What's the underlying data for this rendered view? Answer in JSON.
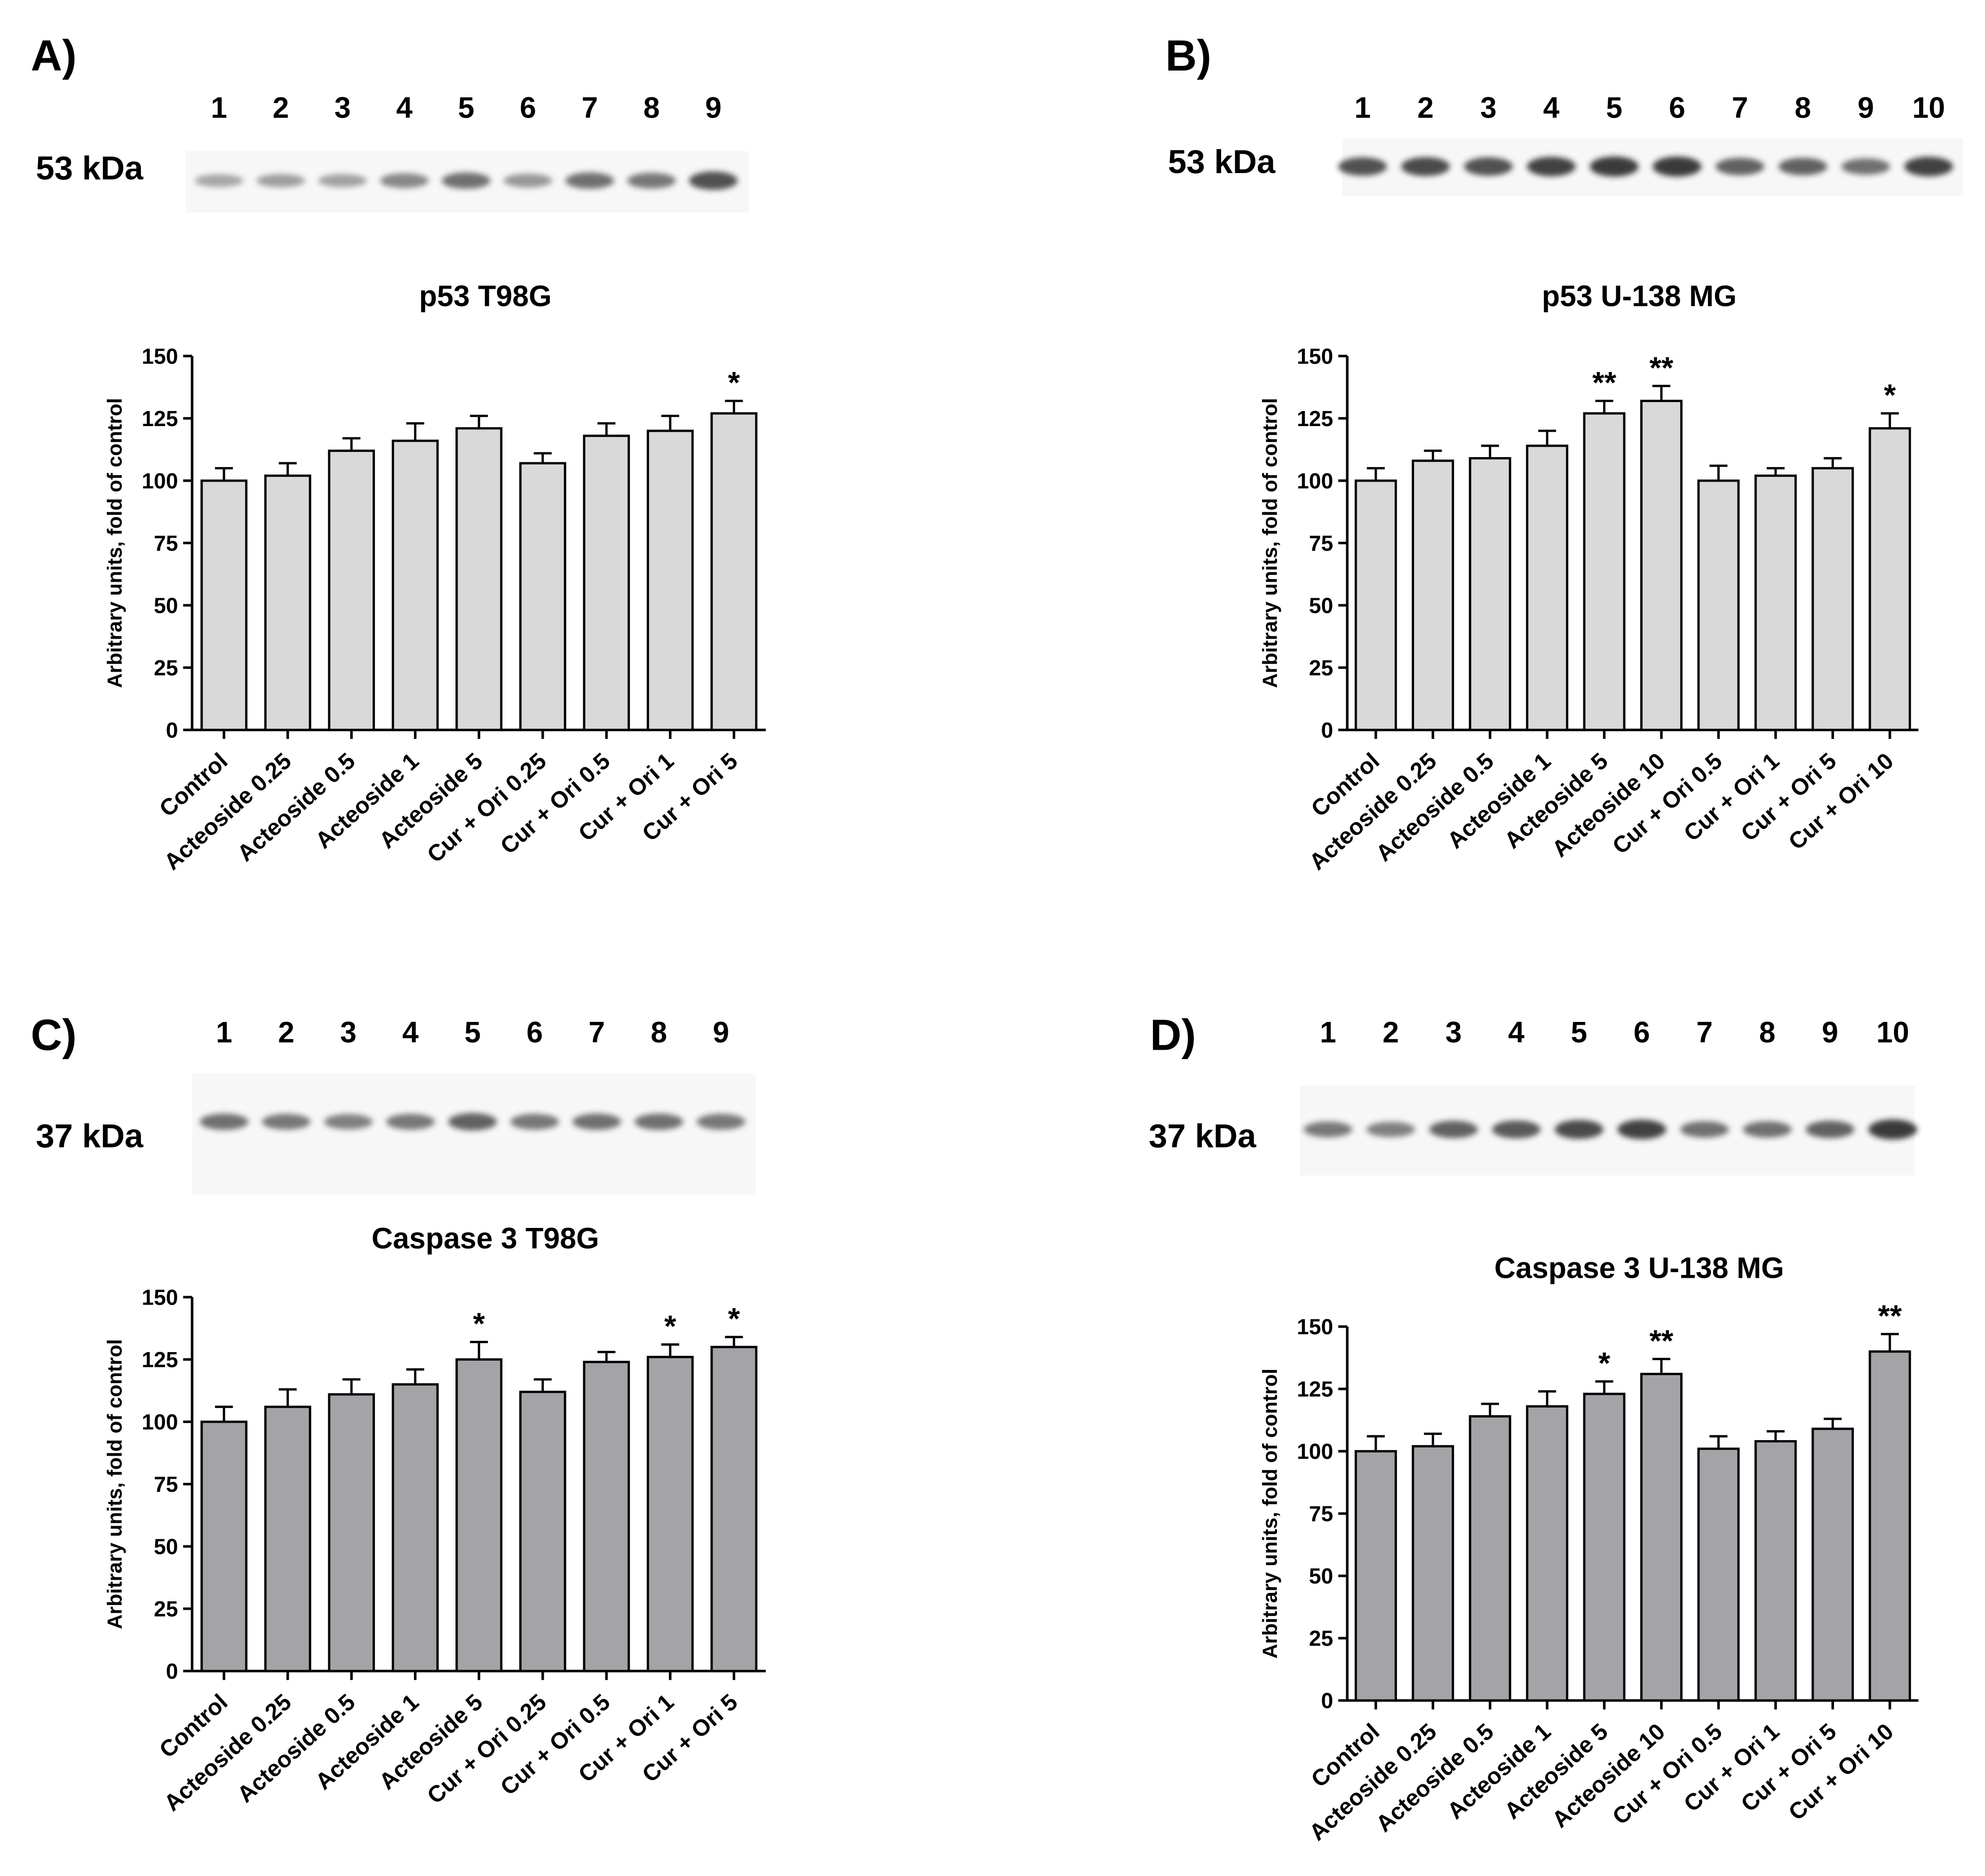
{
  "figure": {
    "panels": [
      {
        "label": "A)",
        "blot": {
          "mw_label": "53 kDa",
          "lanes": [
            "1",
            "2",
            "3",
            "4",
            "5",
            "6",
            "7",
            "8",
            "9"
          ],
          "band_intensity": [
            0.25,
            0.3,
            0.28,
            0.45,
            0.6,
            0.35,
            0.6,
            0.55,
            0.8
          ]
        }
      },
      {
        "label": "B)",
        "blot": {
          "mw_label": "53 kDa",
          "lanes": [
            "1",
            "2",
            "3",
            "4",
            "5",
            "6",
            "7",
            "8",
            "9",
            "10"
          ],
          "band_intensity": [
            0.8,
            0.85,
            0.8,
            0.9,
            0.95,
            0.95,
            0.7,
            0.7,
            0.6,
            0.9
          ]
        }
      },
      {
        "label": "C)",
        "blot": {
          "mw_label": "37 kDa",
          "lanes": [
            "1",
            "2",
            "3",
            "4",
            "5",
            "6",
            "7",
            "8",
            "9"
          ],
          "band_intensity": [
            0.6,
            0.55,
            0.5,
            0.55,
            0.7,
            0.55,
            0.6,
            0.6,
            0.55
          ]
        }
      },
      {
        "label": "D)",
        "blot": {
          "mw_label": "37 kDa",
          "lanes": [
            "1",
            "2",
            "3",
            "4",
            "5",
            "6",
            "7",
            "8",
            "9",
            "10"
          ],
          "band_intensity": [
            0.55,
            0.5,
            0.7,
            0.75,
            0.85,
            0.9,
            0.6,
            0.6,
            0.7,
            0.95
          ]
        }
      }
    ]
  },
  "chart_data": [
    {
      "type": "bar",
      "title": "p53 T98G",
      "ylabel": "Arbitrary units, fold of control",
      "xlabel": "",
      "ylim": [
        0,
        150
      ],
      "yticks": [
        0,
        25,
        50,
        75,
        100,
        125,
        150
      ],
      "bar_color": "#d9d9d9",
      "categories": [
        "Control",
        "Acteoside 0.25",
        "Acteoside 0.5",
        "Acteoside 1",
        "Acteoside 5",
        "Cur + Ori 0.25",
        "Cur + Ori 0.5",
        "Cur + Ori 1",
        "Cur + Ori 5"
      ],
      "values": [
        100,
        102,
        112,
        116,
        121,
        107,
        118,
        120,
        127
      ],
      "errors": [
        5,
        5,
        5,
        7,
        5,
        4,
        5,
        6,
        5
      ],
      "annotations": [
        "",
        "",
        "",
        "",
        "",
        "",
        "",
        "",
        "*"
      ]
    },
    {
      "type": "bar",
      "title": "p53 U-138 MG",
      "ylabel": "Arbitrary units, fold of control",
      "xlabel": "",
      "ylim": [
        0,
        150
      ],
      "yticks": [
        0,
        25,
        50,
        75,
        100,
        125,
        150
      ],
      "bar_color": "#d9d9d9",
      "categories": [
        "Control",
        "Acteoside 0.25",
        "Acteoside 0.5",
        "Acteoside 1",
        "Acteoside 5",
        "Acteoside 10",
        "Cur + Ori 0.5",
        "Cur + Ori 1",
        "Cur + Ori 5",
        "Cur + Ori 10"
      ],
      "values": [
        100,
        108,
        109,
        114,
        127,
        132,
        100,
        102,
        105,
        121
      ],
      "errors": [
        5,
        4,
        5,
        6,
        5,
        6,
        6,
        3,
        4,
        6
      ],
      "annotations": [
        "",
        "",
        "",
        "",
        "**",
        "**",
        "",
        "",
        "",
        "*"
      ]
    },
    {
      "type": "bar",
      "title": "Caspase 3 T98G",
      "ylabel": "Arbitrary units, fold of control",
      "xlabel": "",
      "ylim": [
        0,
        150
      ],
      "yticks": [
        0,
        25,
        50,
        75,
        100,
        125,
        150
      ],
      "bar_color": "#a3a3a8",
      "categories": [
        "Control",
        "Acteoside 0.25",
        "Acteoside 0.5",
        "Acteoside 1",
        "Acteoside 5",
        "Cur + Ori 0.25",
        "Cur + Ori 0.5",
        "Cur + Ori 1",
        "Cur + Ori 5"
      ],
      "values": [
        100,
        106,
        111,
        115,
        125,
        112,
        124,
        126,
        130
      ],
      "errors": [
        6,
        7,
        6,
        6,
        7,
        5,
        4,
        5,
        4
      ],
      "annotations": [
        "",
        "",
        "",
        "",
        "*",
        "",
        "",
        "*",
        "*"
      ]
    },
    {
      "type": "bar",
      "title": "Caspase 3 U-138 MG",
      "ylabel": "Arbitrary units, fold of control",
      "xlabel": "",
      "ylim": [
        0,
        150
      ],
      "yticks": [
        0,
        25,
        50,
        75,
        100,
        125,
        150
      ],
      "bar_color": "#a3a3a8",
      "categories": [
        "Control",
        "Acteoside 0.25",
        "Acteoside 0.5",
        "Acteoside 1",
        "Acteoside 5",
        "Acteoside 10",
        "Cur + Ori 0.5",
        "Cur + Ori 1",
        "Cur + Ori 5",
        "Cur + Ori 10"
      ],
      "values": [
        100,
        102,
        114,
        118,
        123,
        131,
        101,
        104,
        109,
        140
      ],
      "errors": [
        6,
        5,
        5,
        6,
        5,
        6,
        5,
        4,
        4,
        7
      ],
      "annotations": [
        "",
        "",
        "",
        "",
        "*",
        "**",
        "",
        "",
        "",
        "**"
      ]
    }
  ]
}
